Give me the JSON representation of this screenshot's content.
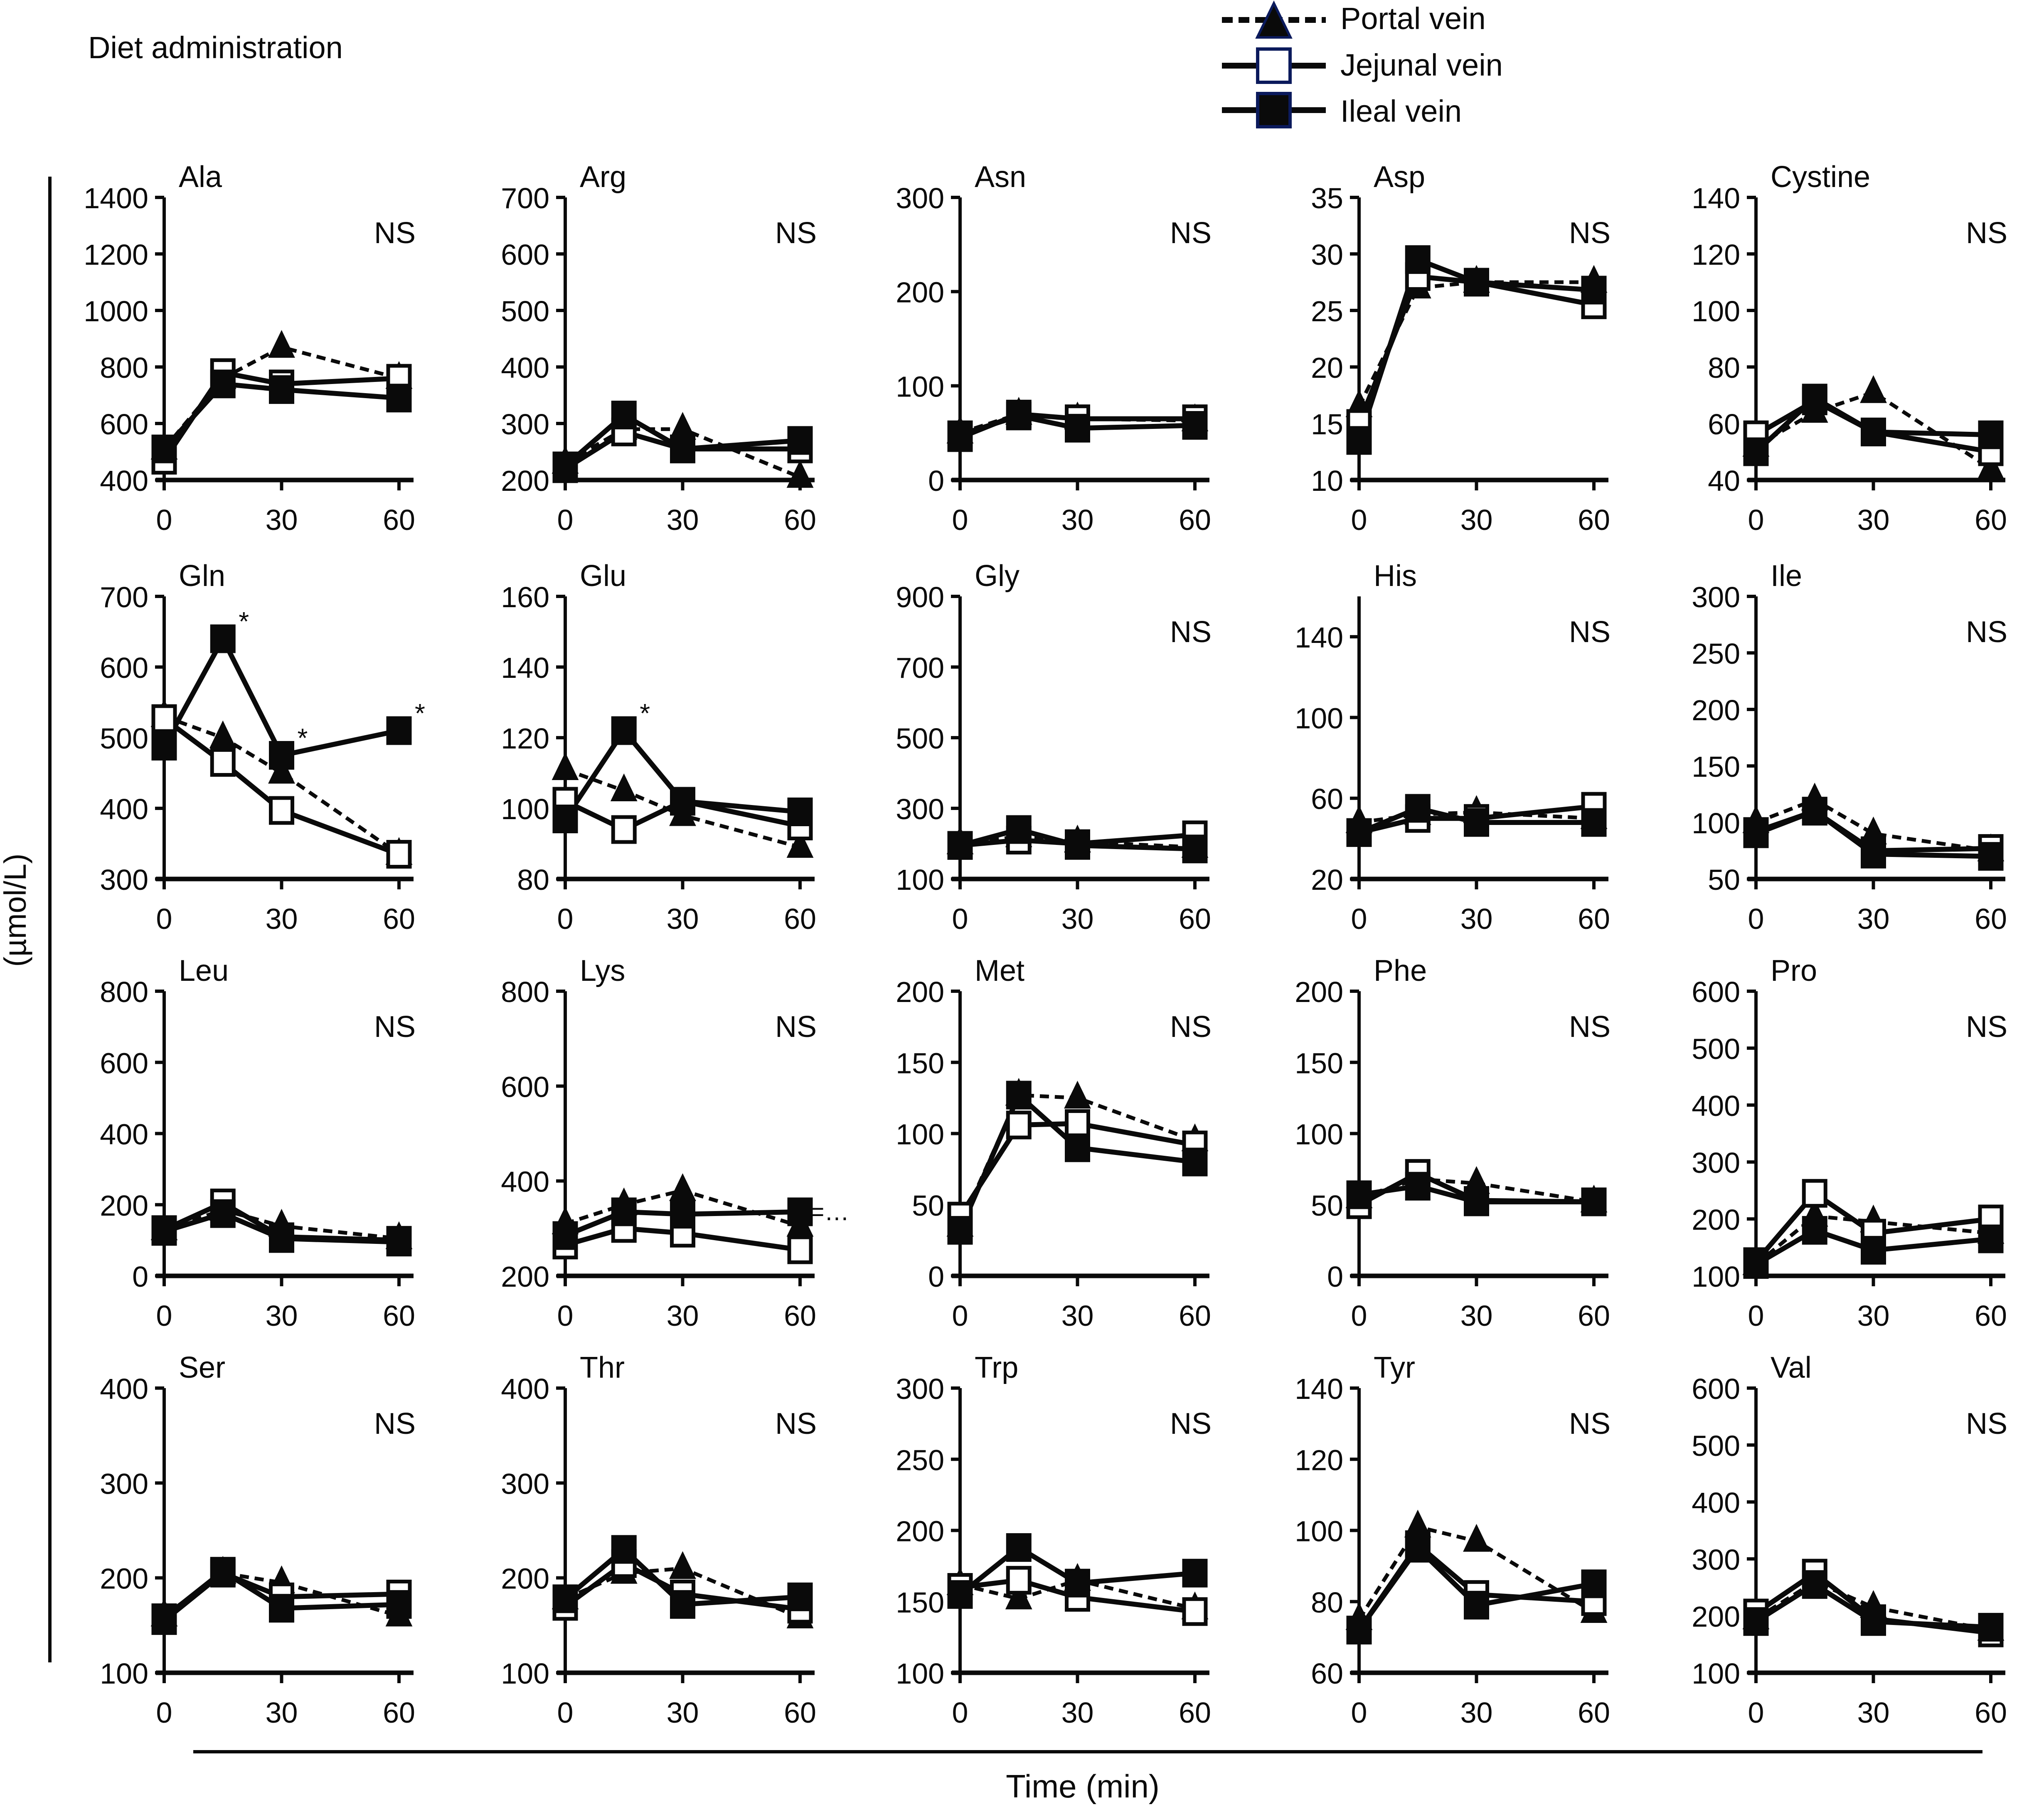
{
  "header": {
    "title": "Diet administration"
  },
  "legend": {
    "items": [
      {
        "label": "Portal vein",
        "marker": "triangle-filled",
        "line": "dashed",
        "color": "#0a0a0a",
        "marker_edge": "#0b1a5c"
      },
      {
        "label": "Jejunal vein",
        "marker": "square-open",
        "line": "solid",
        "color": "#0a0a0a",
        "marker_edge": "#0b1a5c"
      },
      {
        "label": "Ileal vein",
        "marker": "square-filled",
        "line": "solid",
        "color": "#0a0a0a",
        "marker_edge": "#0b1a5c"
      }
    ]
  },
  "axes": {
    "ylabel": "(µmol/L)",
    "xlabel": "Time (min)",
    "x_ticks": [
      0,
      30,
      60
    ]
  },
  "chart_data": {
    "type": "line",
    "title": "Diet administration",
    "xlabel": "Time (min)",
    "ylabel": "(µmol/L)",
    "x": [
      0,
      15,
      30,
      60
    ],
    "x_ticks": [
      0,
      30,
      60
    ],
    "xlim": [
      0,
      60
    ],
    "legend_position": "top-center",
    "series_names": [
      "Portal vein",
      "Jejunal vein",
      "Ileal vein"
    ],
    "panels": [
      {
        "name": "Ala",
        "ylim": [
          400,
          1400
        ],
        "yticks": [
          400,
          600,
          800,
          1000,
          1200,
          1400
        ],
        "note": "NS",
        "series": [
          {
            "name": "Portal vein",
            "values": [
              510,
              760,
              870,
              760
            ]
          },
          {
            "name": "Jejunal vein",
            "values": [
              470,
              780,
              740,
              760
            ]
          },
          {
            "name": "Ileal vein",
            "values": [
              510,
              740,
              720,
              690
            ]
          }
        ]
      },
      {
        "name": "Arg",
        "ylim": [
          200,
          700
        ],
        "yticks": [
          200,
          300,
          400,
          500,
          600,
          700
        ],
        "note": "NS",
        "series": [
          {
            "name": "Portal vein",
            "values": [
              230,
              290,
              290,
              205
            ]
          },
          {
            "name": "Jejunal vein",
            "values": [
              220,
              285,
              255,
              255
            ]
          },
          {
            "name": "Ileal vein",
            "values": [
              225,
              315,
              255,
              270
            ]
          }
        ]
      },
      {
        "name": "Asn",
        "ylim": [
          0,
          300
        ],
        "yticks": [
          0,
          100,
          200,
          300
        ],
        "note": "NS",
        "series": [
          {
            "name": "Portal vein",
            "values": [
              50,
              70,
              65,
              63
            ]
          },
          {
            "name": "Jejunal vein",
            "values": [
              45,
              70,
              65,
              65
            ]
          },
          {
            "name": "Ileal vein",
            "values": [
              48,
              68,
              55,
              58
            ]
          }
        ]
      },
      {
        "name": "Asp",
        "ylim": [
          10,
          35
        ],
        "yticks": [
          10,
          15,
          20,
          25,
          30,
          35
        ],
        "note": "NS",
        "series": [
          {
            "name": "Portal vein",
            "values": [
              16.5,
              27,
              27.5,
              27.5
            ]
          },
          {
            "name": "Jejunal vein",
            "values": [
              15,
              28,
              27.5,
              25.5
            ]
          },
          {
            "name": "Ileal vein",
            "values": [
              13.5,
              29.5,
              27.5,
              26.8
            ]
          }
        ]
      },
      {
        "name": "Cystine",
        "ylim": [
          40,
          140
        ],
        "yticks": [
          40,
          60,
          80,
          100,
          120,
          140
        ],
        "note": "NS",
        "series": [
          {
            "name": "Portal vein",
            "values": [
              52,
              64,
              71,
              44
            ]
          },
          {
            "name": "Jejunal vein",
            "values": [
              56,
              68,
              57,
              50
            ]
          },
          {
            "name": "Ileal vein",
            "values": [
              50,
              69,
              57,
              56
            ]
          }
        ]
      },
      {
        "name": "Gln",
        "ylim": [
          300,
          700
        ],
        "yticks": [
          300,
          400,
          500,
          600,
          700
        ],
        "note": "",
        "stars": [
          {
            "x": 15,
            "y": 640
          },
          {
            "x": 30,
            "y": 475
          },
          {
            "x": 60,
            "y": 510
          }
        ],
        "series": [
          {
            "name": "Portal vein",
            "values": [
              530,
              500,
              450,
              335
            ]
          },
          {
            "name": "Jejunal vein",
            "values": [
              527,
              465,
              397,
              335
            ]
          },
          {
            "name": "Ileal vein",
            "values": [
              488,
              640,
              475,
              510
            ]
          }
        ]
      },
      {
        "name": "Glu",
        "ylim": [
          80,
          160
        ],
        "yticks": [
          80,
          100,
          120,
          140,
          160
        ],
        "note": "",
        "stars": [
          {
            "x": 15,
            "y": 122
          }
        ],
        "series": [
          {
            "name": "Portal vein",
            "values": [
              111,
              105,
              98,
              89
            ]
          },
          {
            "name": "Jejunal vein",
            "values": [
              102,
              94,
              102,
              95
            ]
          },
          {
            "name": "Ileal vein",
            "values": [
              97,
              122,
              102,
              99
            ]
          }
        ]
      },
      {
        "name": "Gly",
        "ylim": [
          100,
          900
        ],
        "yticks": [
          100,
          300,
          500,
          700,
          900
        ],
        "note": "NS",
        "series": [
          {
            "name": "Portal vein",
            "values": [
              200,
              220,
              205,
              190
            ]
          },
          {
            "name": "Jejunal vein",
            "values": [
              195,
              210,
              200,
              225
            ]
          },
          {
            "name": "Ileal vein",
            "values": [
              195,
              240,
              195,
              185
            ]
          }
        ]
      },
      {
        "name": "His",
        "ylim": [
          20,
          160
        ],
        "yticks": [
          20,
          60,
          100,
          140
        ],
        "note": "NS",
        "series": [
          {
            "name": "Portal vein",
            "values": [
              48,
              52,
              53,
              50
            ]
          },
          {
            "name": "Jejunal vein",
            "values": [
              43,
              50,
              50,
              56
            ]
          },
          {
            "name": "Ileal vein",
            "values": [
              43,
              55,
              48,
              48
            ]
          }
        ]
      },
      {
        "name": "Ile",
        "ylim": [
          50,
          300
        ],
        "yticks": [
          50,
          100,
          150,
          200,
          250,
          300
        ],
        "note": "NS",
        "series": [
          {
            "name": "Portal vein",
            "values": [
              100,
              120,
              90,
              75
            ]
          },
          {
            "name": "Jejunal vein",
            "values": [
              92,
              110,
              75,
              77
            ]
          },
          {
            "name": "Ileal vein",
            "values": [
              90,
              110,
              72,
              70
            ]
          }
        ]
      },
      {
        "name": "Leu",
        "ylim": [
          0,
          800
        ],
        "yticks": [
          0,
          200,
          400,
          600,
          800
        ],
        "note": "NS",
        "series": [
          {
            "name": "Portal vein",
            "values": [
              130,
              185,
              140,
              105
            ]
          },
          {
            "name": "Jejunal vein",
            "values": [
              130,
              205,
              110,
              100
            ]
          },
          {
            "name": "Ileal vein",
            "values": [
              125,
              175,
              105,
              95
            ]
          }
        ]
      },
      {
        "name": "Lys",
        "ylim": [
          200,
          800
        ],
        "yticks": [
          200,
          400,
          600,
          800
        ],
        "note": "NS",
        "annotation": "p=…",
        "series": [
          {
            "name": "Portal vein",
            "values": [
              310,
              350,
              380,
              305
            ]
          },
          {
            "name": "Jejunal vein",
            "values": [
              265,
              300,
              290,
              255
            ]
          },
          {
            "name": "Ileal vein",
            "values": [
              285,
              335,
              330,
              335
            ]
          }
        ]
      },
      {
        "name": "Met",
        "ylim": [
          0,
          200
        ],
        "yticks": [
          0,
          50,
          100,
          150,
          200
        ],
        "note": "NS",
        "series": [
          {
            "name": "Portal vein",
            "values": [
              35,
              127,
              125,
              95
            ]
          },
          {
            "name": "Jejunal vein",
            "values": [
              42,
              106,
              107,
              92
            ]
          },
          {
            "name": "Ileal vein",
            "values": [
              32,
              127,
              90,
              80
            ]
          }
        ]
      },
      {
        "name": "Phe",
        "ylim": [
          0,
          200
        ],
        "yticks": [
          0,
          50,
          100,
          150,
          200
        ],
        "note": "NS",
        "series": [
          {
            "name": "Portal vein",
            "values": [
              55,
              68,
              65,
              52
            ]
          },
          {
            "name": "Jejunal vein",
            "values": [
              50,
              72,
              53,
              52
            ]
          },
          {
            "name": "Ileal vein",
            "values": [
              57,
              63,
              52,
              52
            ]
          }
        ]
      },
      {
        "name": "Pro",
        "ylim": [
          100,
          600
        ],
        "yticks": [
          100,
          200,
          300,
          400,
          500,
          600
        ],
        "note": "NS",
        "series": [
          {
            "name": "Portal vein",
            "values": [
              120,
              205,
              195,
              175
            ]
          },
          {
            "name": "Jejunal vein",
            "values": [
              125,
              245,
              175,
              200
            ]
          },
          {
            "name": "Ileal vein",
            "values": [
              120,
              180,
              145,
              165
            ]
          }
        ]
      },
      {
        "name": "Ser",
        "ylim": [
          100,
          400
        ],
        "yticks": [
          100,
          200,
          300,
          400
        ],
        "note": "NS",
        "series": [
          {
            "name": "Portal vein",
            "values": [
              160,
              205,
              195,
              160
            ]
          },
          {
            "name": "Jejunal vein",
            "values": [
              155,
              205,
              180,
              183
            ]
          },
          {
            "name": "Ileal vein",
            "values": [
              158,
              207,
              168,
              172
            ]
          }
        ]
      },
      {
        "name": "Thr",
        "ylim": [
          100,
          400
        ],
        "yticks": [
          100,
          200,
          300,
          400
        ],
        "note": "NS",
        "series": [
          {
            "name": "Portal vein",
            "values": [
              178,
              205,
              210,
              158
            ]
          },
          {
            "name": "Jejunal vein",
            "values": [
              170,
              215,
              183,
              167
            ]
          },
          {
            "name": "Ileal vein",
            "values": [
              178,
              230,
              172,
              180
            ]
          }
        ]
      },
      {
        "name": "Trp",
        "ylim": [
          100,
          300
        ],
        "yticks": [
          100,
          150,
          200,
          250,
          300
        ],
        "note": "NS",
        "series": [
          {
            "name": "Portal vein",
            "values": [
              162,
              152,
              165,
              145
            ]
          },
          {
            "name": "Jejunal vein",
            "values": [
              160,
              165,
              153,
              143
            ]
          },
          {
            "name": "Ileal vein",
            "values": [
              155,
              188,
              163,
              170
            ]
          }
        ]
      },
      {
        "name": "Tyr",
        "ylim": [
          60,
          140
        ],
        "yticks": [
          60,
          80,
          100,
          120,
          140
        ],
        "note": "NS",
        "series": [
          {
            "name": "Portal vein",
            "values": [
              75,
              101,
              97,
              77
            ]
          },
          {
            "name": "Jejunal vein",
            "values": [
              72,
              96,
              82,
              80
            ]
          },
          {
            "name": "Ileal vein",
            "values": [
              72,
              95,
              79,
              85
            ]
          }
        ]
      },
      {
        "name": "Val",
        "ylim": [
          100,
          600
        ],
        "yticks": [
          100,
          200,
          300,
          400,
          500,
          600
        ],
        "note": "NS",
        "series": [
          {
            "name": "Portal vein",
            "values": [
              195,
              260,
              215,
              175
            ]
          },
          {
            "name": "Jejunal vein",
            "values": [
              205,
              275,
              195,
              170
            ]
          },
          {
            "name": "Ileal vein",
            "values": [
              190,
              255,
              190,
              180
            ]
          }
        ]
      }
    ]
  }
}
